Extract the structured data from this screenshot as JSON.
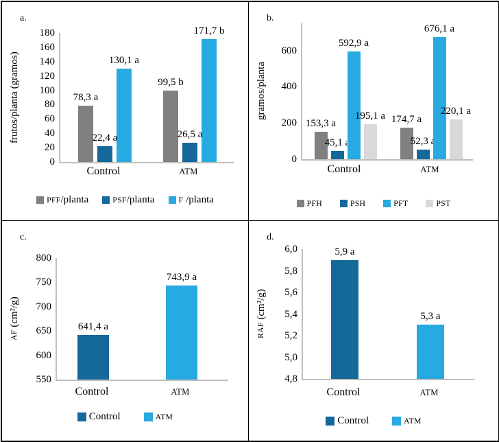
{
  "colors": {
    "gray": "#808080",
    "dark_blue": "#15689a",
    "light_blue": "#27a9e1",
    "light_gray": "#d9d9d9",
    "axis": "#bfbfbf",
    "text": "#000000"
  },
  "chart_data": [
    {
      "id": "a",
      "type": "bar",
      "panel_label": "a.",
      "ylabel": "frutos/planta (gramos)",
      "ylim": [
        0,
        180
      ],
      "grid": false,
      "legend_position": "bottom",
      "yticks": [
        {
          "v": 180,
          "t": "180"
        },
        {
          "v": 160,
          "t": "160"
        },
        {
          "v": 140,
          "t": "140"
        },
        {
          "v": 120,
          "t": "120"
        },
        {
          "v": 100,
          "t": "100"
        },
        {
          "v": 80,
          "t": "80"
        },
        {
          "v": 60,
          "t": "60"
        },
        {
          "v": 40,
          "t": "40"
        },
        {
          "v": 20,
          "t": "20"
        },
        {
          "v": 0,
          "t": "0"
        }
      ],
      "groups": [
        {
          "category": "Control",
          "bars": [
            {
              "series": "PFF/planta",
              "color": "gray",
              "value": 78.3,
              "label": "78,3 a"
            },
            {
              "series": "PSF/planta",
              "color": "dark_blue",
              "value": 22.4,
              "label": "22,4 a"
            },
            {
              "series": "F /planta",
              "color": "light_blue",
              "value": 130.1,
              "label": "130,1 a"
            }
          ]
        },
        {
          "category": "ATM",
          "bars": [
            {
              "series": "PFF/planta",
              "color": "gray",
              "value": 99.5,
              "label": "99,5 b"
            },
            {
              "series": "PSF/planta",
              "color": "dark_blue",
              "value": 26.5,
              "label": "26,5 a"
            },
            {
              "series": "F /planta",
              "color": "light_blue",
              "value": 171.7,
              "label": "171,7 b"
            }
          ]
        }
      ],
      "legend": [
        {
          "label": "PFF/planta",
          "color": "gray"
        },
        {
          "label": "PSF/planta",
          "color": "dark_blue"
        },
        {
          "label": "F /planta",
          "color": "light_blue"
        }
      ]
    },
    {
      "id": "b",
      "type": "bar",
      "panel_label": "b.",
      "ylabel": "gramos/planta",
      "ylim": [
        0,
        750
      ],
      "grid": false,
      "legend_position": "bottom",
      "yticks": [
        {
          "v": 600,
          "t": "600"
        },
        {
          "v": 400,
          "t": "400"
        },
        {
          "v": 200,
          "t": "200"
        },
        {
          "v": 0,
          "t": "0"
        }
      ],
      "groups": [
        {
          "category": "Control",
          "bars": [
            {
              "series": "PFH",
              "color": "gray",
              "value": 153.3,
              "label": "153,3 a"
            },
            {
              "series": "PSH",
              "color": "dark_blue",
              "value": 45.1,
              "label": "45,1 a"
            },
            {
              "series": "PFT",
              "color": "light_blue",
              "value": 592.9,
              "label": "592,9 a"
            },
            {
              "series": "PST",
              "color": "light_gray",
              "value": 195.1,
              "label": "195,1 a"
            }
          ]
        },
        {
          "category": "ATM",
          "bars": [
            {
              "series": "PFH",
              "color": "gray",
              "value": 174.7,
              "label": "174,7 a"
            },
            {
              "series": "PSH",
              "color": "dark_blue",
              "value": 52.3,
              "label": "52,3 a"
            },
            {
              "series": "PFT",
              "color": "light_blue",
              "value": 676.1,
              "label": "676,1 a"
            },
            {
              "series": "PST",
              "color": "light_gray",
              "value": 220.1,
              "label": "220,1 a"
            }
          ]
        }
      ],
      "legend": [
        {
          "label": "PFH",
          "color": "gray"
        },
        {
          "label": "PSH",
          "color": "dark_blue"
        },
        {
          "label": "PFT",
          "color": "light_blue"
        },
        {
          "label": "PST",
          "color": "light_gray"
        }
      ]
    },
    {
      "id": "c",
      "type": "bar",
      "panel_label": "c.",
      "ylabel": "AF (cm²/g)",
      "ylim": [
        550,
        800
      ],
      "grid": false,
      "legend_position": "bottom",
      "yticks": [
        {
          "v": 800,
          "t": "800"
        },
        {
          "v": 750,
          "t": "750"
        },
        {
          "v": 700,
          "t": "700"
        },
        {
          "v": 650,
          "t": "650"
        },
        {
          "v": 600,
          "t": "600"
        },
        {
          "v": 550,
          "t": "550"
        }
      ],
      "groups": [
        {
          "category": "Control",
          "bars": [
            {
              "series": "Control",
              "color": "dark_blue",
              "value": 641.4,
              "label": "641,4 a"
            }
          ]
        },
        {
          "category": "ATM",
          "bars": [
            {
              "series": "ATM",
              "color": "light_blue",
              "value": 743.9,
              "label": "743,9 a"
            }
          ]
        }
      ],
      "legend": [
        {
          "label": "Control",
          "color": "dark_blue"
        },
        {
          "label": "ATM",
          "color": "light_blue"
        }
      ]
    },
    {
      "id": "d",
      "type": "bar",
      "panel_label": "d.",
      "ylabel": "RAF (cm²/g)",
      "ylim": [
        4.8,
        6.0
      ],
      "grid": false,
      "legend_position": "bottom",
      "yticks": [
        {
          "v": 6.0,
          "t": "6,0"
        },
        {
          "v": 5.8,
          "t": "5,8"
        },
        {
          "v": 5.6,
          "t": "5,6"
        },
        {
          "v": 5.4,
          "t": "5,4"
        },
        {
          "v": 5.2,
          "t": "5,2"
        },
        {
          "v": 5.0,
          "t": "5,0"
        },
        {
          "v": 4.8,
          "t": "4,8"
        }
      ],
      "groups": [
        {
          "category": "Control",
          "bars": [
            {
              "series": "Control",
              "color": "dark_blue",
              "value": 5.9,
              "label": "5,9 a"
            }
          ]
        },
        {
          "category": "ATM",
          "bars": [
            {
              "series": "ATM",
              "color": "light_blue",
              "value": 5.3,
              "label": "5,3 a"
            }
          ]
        }
      ],
      "legend": [
        {
          "label": "Control",
          "color": "dark_blue"
        },
        {
          "label": "ATM",
          "color": "light_blue"
        }
      ]
    }
  ]
}
